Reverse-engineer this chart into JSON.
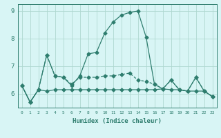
{
  "xlabel": "Humidex (Indice chaleur)",
  "x_values": [
    0,
    1,
    2,
    3,
    4,
    5,
    6,
    7,
    8,
    9,
    10,
    11,
    12,
    13,
    14,
    15,
    16,
    17,
    18,
    19,
    20,
    21,
    22,
    23
  ],
  "line_main": [
    6.3,
    5.7,
    6.15,
    7.4,
    6.65,
    6.6,
    6.3,
    6.65,
    7.45,
    7.5,
    8.2,
    8.6,
    8.85,
    8.95,
    9.0,
    8.05,
    6.35,
    6.18,
    6.5,
    6.15,
    6.1,
    6.6,
    6.1,
    5.9
  ],
  "line_dash": [
    6.3,
    5.7,
    6.15,
    7.4,
    6.65,
    6.6,
    6.35,
    6.6,
    6.6,
    6.6,
    6.65,
    6.65,
    6.7,
    6.75,
    6.5,
    6.45,
    6.35,
    6.18,
    6.5,
    6.15,
    6.1,
    6.6,
    6.1,
    5.9
  ],
  "line_flat": [
    6.3,
    5.7,
    6.15,
    6.1,
    6.15,
    6.15,
    6.15,
    6.15,
    6.15,
    6.15,
    6.15,
    6.15,
    6.15,
    6.15,
    6.15,
    6.15,
    6.15,
    6.18,
    6.15,
    6.15,
    6.1,
    6.1,
    6.1,
    5.9
  ],
  "line_color": "#2e7d6e",
  "bg_color": "#d8f5f5",
  "grid_color": "#afd8d0",
  "ylim": [
    5.5,
    9.25
  ],
  "xlim": [
    -0.5,
    23.5
  ]
}
